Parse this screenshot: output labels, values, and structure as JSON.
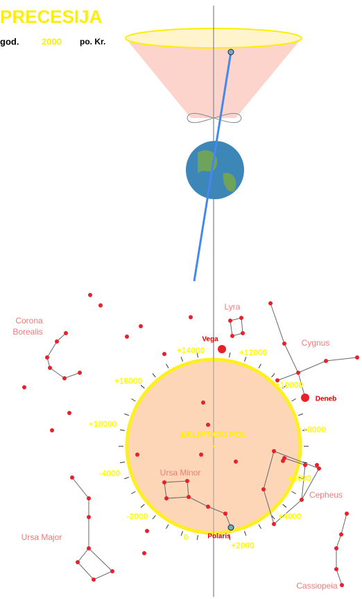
{
  "header": {
    "title": "PRECESIJA",
    "year_prefix": "god.",
    "year": "2000",
    "era": "po. Kr."
  },
  "diagram": {
    "ecliptic_label": "EKLIPTICKI POL",
    "ring_labels": [
      "+14000",
      "+12000",
      "+16000",
      "+10000",
      "+18000",
      "+8000",
      "-4000",
      "+6000",
      "-2000",
      "+4000",
      "0",
      "+2000"
    ],
    "constellations": [
      "Lyra",
      "Cygnus",
      "Corona",
      "Borealis",
      "Cepheus",
      "Ursa Minor",
      "Ursa Major",
      "Cassiopeia"
    ],
    "stars": [
      "Vega",
      "Deneb",
      "Polaris"
    ]
  }
}
